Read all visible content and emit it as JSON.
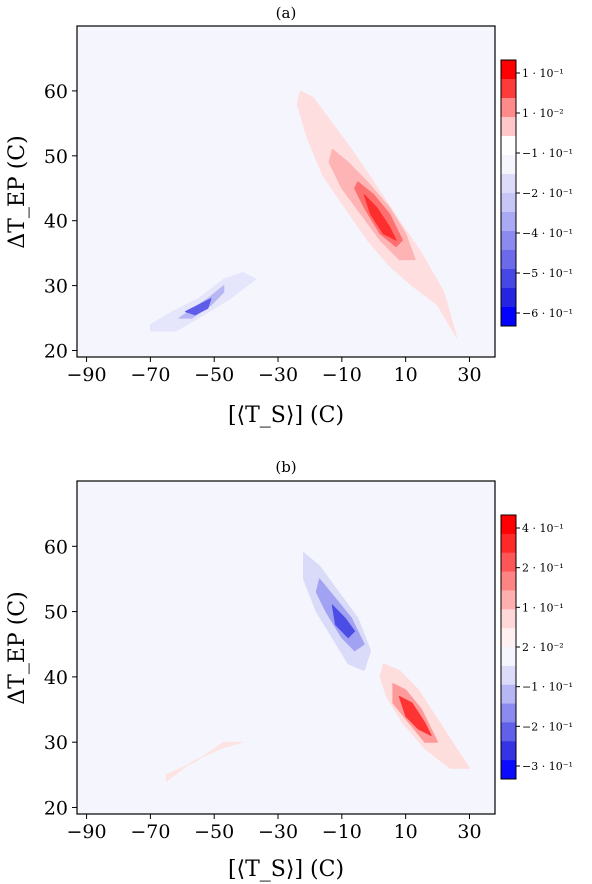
{
  "chart_data": [
    {
      "type": "contour",
      "title": "(a)",
      "xlabel": "[⟨T_S⟩] (C)",
      "ylabel": "ΔT_EP (C)",
      "xlim": [
        -93,
        38
      ],
      "ylim": [
        19,
        70
      ],
      "xticks": [
        -90,
        -70,
        -50,
        -30,
        -10,
        10,
        30
      ],
      "yticks": [
        20,
        30,
        40,
        50,
        60
      ],
      "xtick_labels": [
        "−90",
        "−70",
        "−50",
        "−30",
        "−10",
        "10",
        "30"
      ],
      "ytick_labels": [
        "20",
        "30",
        "40",
        "50",
        "60"
      ],
      "colorbar": {
        "tick_labels": [
          "1 · 10⁻¹",
          "1 · 10⁻²",
          "−1 · 10⁻¹",
          "−2 · 10⁻¹",
          "−4 · 10⁻¹",
          "−5 · 10⁻¹",
          "−6 · 10⁻¹"
        ],
        "colors": [
          "#fe0000",
          "#fe3b3b",
          "#fe8a8a",
          "#fec8c8",
          "#fefeff",
          "#f5f5fd",
          "#dcdcfa",
          "#c6c6f7",
          "#a9a9f4",
          "#8a8aef",
          "#6a6aeb",
          "#4747e6",
          "#2424e2",
          "#0202fe"
        ]
      },
      "features": [
        {
          "name": "positive-lobe",
          "sign": "+",
          "center": [
            0,
            45
          ],
          "peak": 0.1,
          "layers": [
            {
              "color": "#fedede",
              "points": [
                [
                  -23,
                  60
                ],
                [
                  -19,
                  59
                ],
                [
                  -13,
                  55
                ],
                [
                  -7,
                  51
                ],
                [
                  0,
                  46
                ],
                [
                  8,
                  40
                ],
                [
                  15,
                  35
                ],
                [
                  22,
                  29
                ],
                [
                  26,
                  22
                ],
                [
                  20,
                  27
                ],
                [
                  12,
                  30
                ],
                [
                  5,
                  33
                ],
                [
                  -2,
                  37
                ],
                [
                  -9,
                  42
                ],
                [
                  -16,
                  47
                ],
                [
                  -21,
                  53
                ],
                [
                  -24,
                  58
                ]
              ]
            },
            {
              "color": "#feb4b4",
              "points": [
                [
                  -13,
                  51
                ],
                [
                  -8,
                  49
                ],
                [
                  -2,
                  46
                ],
                [
                  5,
                  42
                ],
                [
                  10,
                  38
                ],
                [
                  13,
                  34
                ],
                [
                  8,
                  34
                ],
                [
                  2,
                  37
                ],
                [
                  -4,
                  41
                ],
                [
                  -10,
                  45
                ],
                [
                  -14,
                  49
                ]
              ]
            },
            {
              "color": "#fe7070",
              "points": [
                [
                  -5,
                  46
                ],
                [
                  0,
                  44
                ],
                [
                  5,
                  41
                ],
                [
                  9,
                  37
                ],
                [
                  7,
                  36
                ],
                [
                  2,
                  38
                ],
                [
                  -3,
                  42
                ],
                [
                  -6,
                  45
                ]
              ]
            },
            {
              "color": "#fe2e2e",
              "points": [
                [
                  -3,
                  44
                ],
                [
                  1,
                  42
                ],
                [
                  5,
                  39
                ],
                [
                  7,
                  37
                ],
                [
                  3,
                  38
                ],
                [
                  -1,
                  41
                ]
              ]
            }
          ]
        },
        {
          "name": "negative-lobe",
          "sign": "−",
          "center": [
            -55,
            27
          ],
          "peak": -0.6,
          "layers": [
            {
              "color": "#e5e5fb",
              "points": [
                [
                  -41,
                  32
                ],
                [
                  -37,
                  31
                ],
                [
                  -45,
                  28
                ],
                [
                  -55,
                  25
                ],
                [
                  -62,
                  23
                ],
                [
                  -70,
                  23
                ],
                [
                  -70,
                  24
                ],
                [
                  -63,
                  26
                ],
                [
                  -55,
                  28
                ],
                [
                  -47,
                  31
                ]
              ]
            },
            {
              "color": "#b7b7f4",
              "points": [
                [
                  -47,
                  30
                ],
                [
                  -52,
                  28
                ],
                [
                  -58,
                  26
                ],
                [
                  -61,
                  25
                ],
                [
                  -57,
                  25
                ],
                [
                  -51,
                  27
                ],
                [
                  -47,
                  29
                ]
              ]
            },
            {
              "color": "#5d5dea",
              "points": [
                [
                  -51,
                  28
                ],
                [
                  -55,
                  27
                ],
                [
                  -59,
                  26
                ],
                [
                  -56,
                  25.5
                ],
                [
                  -52,
                  26.5
                ]
              ]
            }
          ]
        }
      ]
    },
    {
      "type": "contour",
      "title": "(b)",
      "xlabel": "[⟨T_S⟩] (C)",
      "ylabel": "ΔT_EP (C)",
      "xlim": [
        -93,
        38
      ],
      "ylim": [
        19,
        70
      ],
      "xticks": [
        -90,
        -70,
        -50,
        -30,
        -10,
        10,
        30
      ],
      "yticks": [
        20,
        30,
        40,
        50,
        60
      ],
      "xtick_labels": [
        "−90",
        "−70",
        "−50",
        "−30",
        "−10",
        "10",
        "30"
      ],
      "ytick_labels": [
        "20",
        "30",
        "40",
        "50",
        "60"
      ],
      "colorbar": {
        "tick_labels": [
          "4 · 10⁻¹",
          "2 · 10⁻¹",
          "1 · 10⁻¹",
          "2 · 10⁻²",
          "−1 · 10⁻¹",
          "−2 · 10⁻¹",
          "−3 · 10⁻¹"
        ],
        "colors": [
          "#fe0000",
          "#fe2a2a",
          "#fe5656",
          "#fe8484",
          "#feb0b0",
          "#fed8d8",
          "#fef0f0",
          "#f5f5fd",
          "#dcdcfa",
          "#b6b6f5",
          "#8a8aef",
          "#6060ea",
          "#3434e4",
          "#0a0afe"
        ]
      },
      "features": [
        {
          "name": "negative-lobe",
          "sign": "−",
          "center": [
            -10,
            49
          ],
          "peak": -0.3,
          "layers": [
            {
              "color": "#dadaf9",
              "points": [
                [
                  -22,
                  59
                ],
                [
                  -17,
                  57
                ],
                [
                  -11,
                  53
                ],
                [
                  -5,
                  49
                ],
                [
                  -1,
                  44
                ],
                [
                  -3,
                  41
                ],
                [
                  -8,
                  42
                ],
                [
                  -13,
                  46
                ],
                [
                  -18,
                  50
                ],
                [
                  -22,
                  55
                ]
              ]
            },
            {
              "color": "#a2a2f2",
              "points": [
                [
                  -17,
                  55
                ],
                [
                  -12,
                  52
                ],
                [
                  -7,
                  49
                ],
                [
                  -3,
                  45
                ],
                [
                  -6,
                  44
                ],
                [
                  -10,
                  46
                ],
                [
                  -15,
                  50
                ],
                [
                  -18,
                  53
                ]
              ]
            },
            {
              "color": "#4c4ce7",
              "points": [
                [
                  -13,
                  51
                ],
                [
                  -9,
                  49
                ],
                [
                  -6,
                  47
                ],
                [
                  -8,
                  46
                ],
                [
                  -12,
                  48
                ]
              ]
            }
          ]
        },
        {
          "name": "positive-lobe",
          "sign": "+",
          "center": [
            13,
            34
          ],
          "peak": 0.4,
          "layers": [
            {
              "color": "#fedddd",
              "points": [
                [
                  3,
                  42
                ],
                [
                  8,
                  41
                ],
                [
                  14,
                  38
                ],
                [
                  22,
                  32
                ],
                [
                  30,
                  26
                ],
                [
                  24,
                  26
                ],
                [
                  16,
                  29
                ],
                [
                  9,
                  33
                ],
                [
                  4,
                  37
                ],
                [
                  2,
                  40
                ]
              ]
            },
            {
              "color": "#fe9a9a",
              "points": [
                [
                  6,
                  39
                ],
                [
                  10,
                  38
                ],
                [
                  15,
                  35
                ],
                [
                  20,
                  30
                ],
                [
                  16,
                  30
                ],
                [
                  11,
                  33
                ],
                [
                  6,
                  36
                ]
              ]
            },
            {
              "color": "#fe3434",
              "points": [
                [
                  8,
                  37
                ],
                [
                  12,
                  36
                ],
                [
                  16,
                  33
                ],
                [
                  18,
                  31
                ],
                [
                  14,
                  32
                ],
                [
                  10,
                  34
                ]
              ]
            }
          ]
        },
        {
          "name": "weak-positive-lobe",
          "sign": "+",
          "center": [
            -54,
            27
          ],
          "peak": 0.02,
          "layers": [
            {
              "color": "#fee3e3",
              "points": [
                [
                  -41,
                  30
                ],
                [
                  -48,
                  29
                ],
                [
                  -57,
                  27
                ],
                [
                  -65,
                  24
                ],
                [
                  -65,
                  25
                ],
                [
                  -56,
                  27
                ],
                [
                  -47,
                  30
                ]
              ]
            }
          ]
        }
      ]
    }
  ]
}
